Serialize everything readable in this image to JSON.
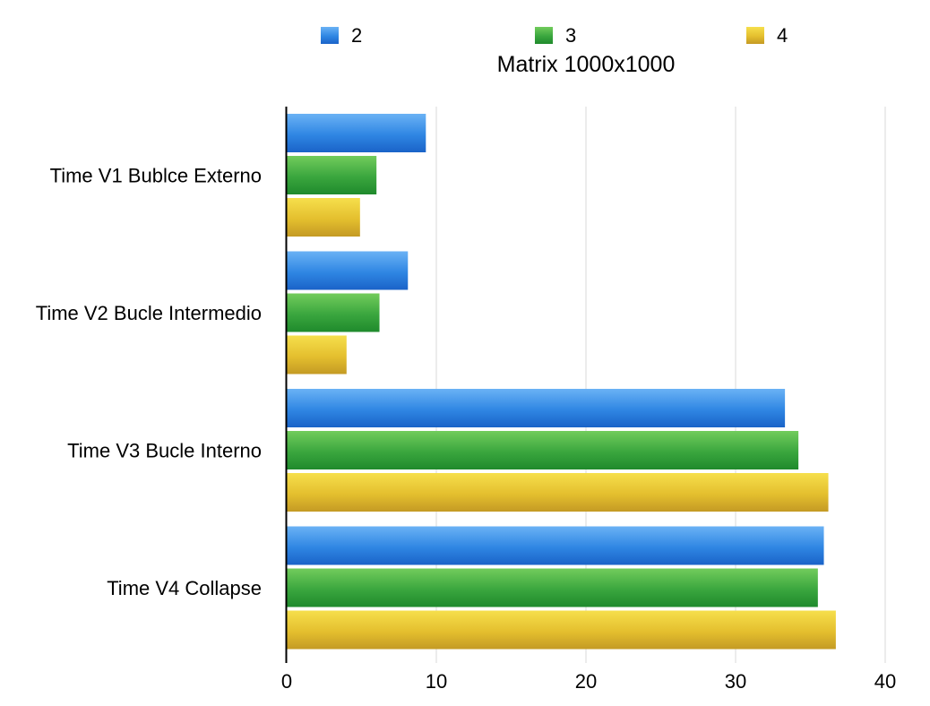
{
  "chart_data": {
    "type": "bar",
    "orientation": "horizontal",
    "title": "Matrix 1000x1000",
    "xlabel": "",
    "ylabel": "",
    "categories": [
      "Time V1 Bublce Externo",
      "Time V2 Bucle Intermedio",
      "Time V3 Bucle Interno",
      "Time V4 Collapse"
    ],
    "series": [
      {
        "name": "2",
        "color": "#2f7fdc",
        "values": [
          9.3,
          8.1,
          33.3,
          35.9
        ]
      },
      {
        "name": "3",
        "color": "#36a33c",
        "values": [
          6.0,
          6.2,
          34.2,
          35.5
        ]
      },
      {
        "name": "4",
        "color": "#e6c52e",
        "values": [
          4.9,
          4.0,
          36.2,
          36.7
        ]
      }
    ],
    "xlim": [
      0,
      40
    ],
    "xticks": [
      "0",
      "10",
      "20",
      "30",
      "40"
    ],
    "grid": true,
    "legend_position": "top"
  }
}
